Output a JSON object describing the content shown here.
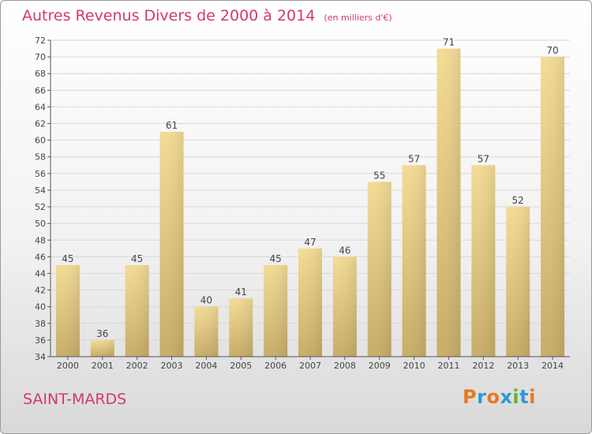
{
  "title": "Autres Revenus Divers de 2000 à 2014",
  "unit_note": "(en milliers d'€)",
  "city": "SAINT-MARDS",
  "logo": {
    "text": "Proxiti",
    "letters": [
      {
        "ch": "P",
        "color": "#e8791f"
      },
      {
        "ch": "r",
        "color": "#2e9ad0"
      },
      {
        "ch": "o",
        "color": "#e8791f"
      },
      {
        "ch": "x",
        "color": "#2e9ad0"
      },
      {
        "ch": "i",
        "color": "#6fae2e"
      },
      {
        "ch": "t",
        "color": "#2e9ad0"
      },
      {
        "ch": "i",
        "color": "#e8791f"
      }
    ]
  },
  "colors": {
    "title": "#d13a6a",
    "bar_light": "#f4dc96",
    "bar_dark": "#c8ad68",
    "grid": "#d8d8d8"
  },
  "chart_data": {
    "type": "bar",
    "title": "Autres Revenus Divers de 2000 à 2014",
    "xlabel": "",
    "ylabel": "",
    "categories": [
      "2000",
      "2001",
      "2002",
      "2003",
      "2004",
      "2005",
      "2006",
      "2007",
      "2008",
      "2009",
      "2010",
      "2011",
      "2012",
      "2013",
      "2014"
    ],
    "values": [
      45,
      36,
      45,
      61,
      40,
      41,
      45,
      47,
      46,
      55,
      57,
      71,
      57,
      52,
      70
    ],
    "ylim": [
      34,
      72
    ],
    "yticks": [
      34,
      36,
      38,
      40,
      42,
      44,
      46,
      48,
      50,
      52,
      54,
      56,
      58,
      60,
      62,
      64,
      66,
      68,
      70,
      72
    ],
    "grid": true,
    "data_labels": true
  }
}
